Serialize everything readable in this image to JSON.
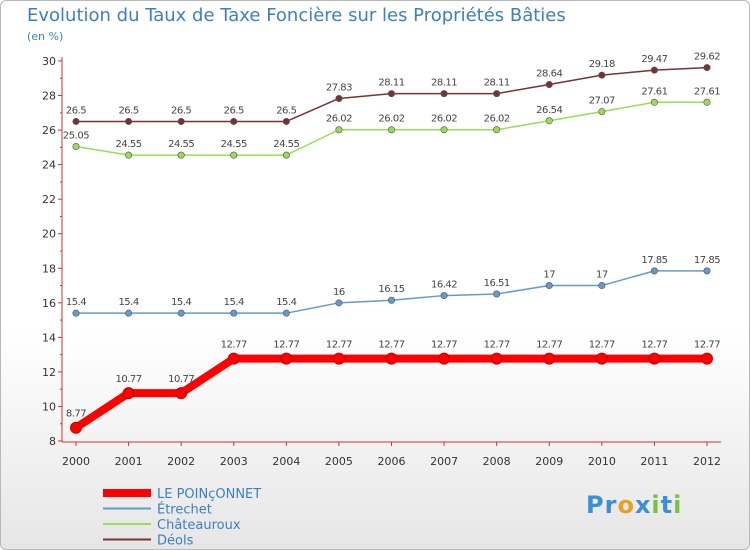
{
  "chart_data": {
    "type": "line",
    "title": "Evolution du Taux de Taxe Foncière sur les Propriétés Bâties",
    "ylabel": "(en %)",
    "xlabel": "",
    "x": [
      "2000",
      "2001",
      "2002",
      "2003",
      "2004",
      "2005",
      "2006",
      "2007",
      "2008",
      "2009",
      "2010",
      "2011",
      "2012"
    ],
    "ylim": [
      8,
      30
    ],
    "yticks": [
      "8",
      "10",
      "12",
      "14",
      "16",
      "18",
      "20",
      "22",
      "24",
      "26",
      "28",
      "30"
    ],
    "grid": false,
    "legend": "bottom-left",
    "series": [
      {
        "name": "LE POINçONNET",
        "color": "#ff0000",
        "values": [
          8.77,
          10.77,
          10.77,
          12.77,
          12.77,
          12.77,
          12.77,
          12.77,
          12.77,
          12.77,
          12.77,
          12.77,
          12.77
        ],
        "labels": [
          "8.77",
          "10.77",
          "10.77",
          "12.77",
          "12.77",
          "12.77",
          "12.77",
          "12.77",
          "12.77",
          "12.77",
          "12.77",
          "12.77",
          "12.77"
        ]
      },
      {
        "name": "Étrechet",
        "color": "#6699cc",
        "values": [
          15.4,
          15.4,
          15.4,
          15.4,
          15.4,
          16,
          16.15,
          16.42,
          16.51,
          17,
          17,
          17.85,
          17.85
        ],
        "labels": [
          "15.4",
          "15.4",
          "15.4",
          "15.4",
          "15.4",
          "16",
          "16.15",
          "16.42",
          "16.51",
          "17",
          "17",
          "17.85",
          "17.85"
        ]
      },
      {
        "name": "Châteauroux",
        "color": "#99dd55",
        "values": [
          25.05,
          24.55,
          24.55,
          24.55,
          24.55,
          26.02,
          26.02,
          26.02,
          26.02,
          26.54,
          27.07,
          27.61,
          27.61
        ],
        "labels": [
          "25.05",
          "24.55",
          "24.55",
          "24.55",
          "24.55",
          "26.02",
          "26.02",
          "26.02",
          "26.02",
          "26.54",
          "27.07",
          "27.61",
          "27.61"
        ]
      },
      {
        "name": "Déols",
        "color": "#773333",
        "values": [
          26.5,
          26.5,
          26.5,
          26.5,
          26.5,
          27.83,
          28.11,
          28.11,
          28.11,
          28.64,
          29.18,
          29.47,
          29.62
        ],
        "labels": [
          "26.5",
          "26.5",
          "26.5",
          "26.5",
          "26.5",
          "27.83",
          "28.11",
          "28.11",
          "28.11",
          "28.64",
          "29.18",
          "29.47",
          "29.62"
        ]
      }
    ]
  },
  "logo": {
    "text": "Proxiti",
    "letters": [
      "P",
      "r",
      "o",
      "x",
      "i",
      "t",
      "i"
    ],
    "colors": [
      "#3a8fd8",
      "#3a8fd8",
      "#e8a020",
      "#3a8fd8",
      "#7ac143",
      "#3a8fd8",
      "#7ac143"
    ]
  }
}
